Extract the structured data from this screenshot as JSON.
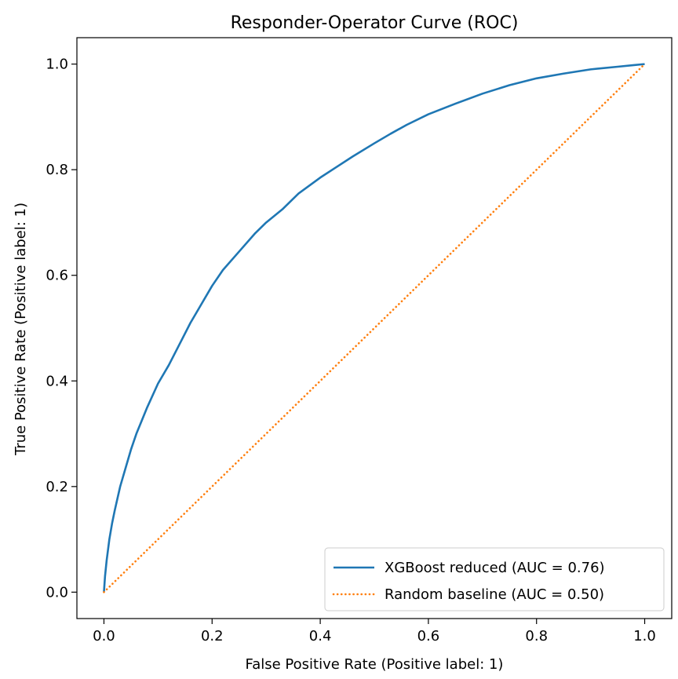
{
  "chart_data": {
    "type": "line",
    "title": "Responder-Operator Curve (ROC)",
    "xlabel": "False Positive Rate (Positive label: 1)",
    "ylabel": "True Positive Rate (Positive label: 1)",
    "xlim": [
      -0.05,
      1.05
    ],
    "ylim": [
      -0.05,
      1.05
    ],
    "xticks": [
      0.0,
      0.2,
      0.4,
      0.6,
      0.8,
      1.0
    ],
    "xtick_labels": [
      "0.0",
      "0.2",
      "0.4",
      "0.6",
      "0.8",
      "1.0"
    ],
    "yticks": [
      0.0,
      0.2,
      0.4,
      0.6,
      0.8,
      1.0
    ],
    "ytick_labels": [
      "0.0",
      "0.2",
      "0.4",
      "0.6",
      "0.8",
      "1.0"
    ],
    "grid": false,
    "legend_position": "lower-right",
    "series": [
      {
        "name": "XGBoost reduced (AUC = 0.76)",
        "color": "#1f77b4",
        "style": "solid",
        "x": [
          0.0,
          0.002,
          0.005,
          0.01,
          0.015,
          0.02,
          0.03,
          0.04,
          0.05,
          0.06,
          0.07,
          0.08,
          0.1,
          0.12,
          0.14,
          0.16,
          0.18,
          0.2,
          0.22,
          0.25,
          0.28,
          0.3,
          0.33,
          0.36,
          0.4,
          0.43,
          0.46,
          0.5,
          0.53,
          0.56,
          0.6,
          0.65,
          0.7,
          0.75,
          0.8,
          0.85,
          0.9,
          0.95,
          0.98,
          1.0
        ],
        "y": [
          0.0,
          0.03,
          0.06,
          0.1,
          0.13,
          0.155,
          0.2,
          0.235,
          0.27,
          0.3,
          0.325,
          0.35,
          0.395,
          0.43,
          0.47,
          0.51,
          0.545,
          0.58,
          0.61,
          0.645,
          0.68,
          0.7,
          0.725,
          0.755,
          0.785,
          0.805,
          0.825,
          0.85,
          0.868,
          0.885,
          0.905,
          0.925,
          0.944,
          0.96,
          0.973,
          0.982,
          0.99,
          0.995,
          0.998,
          1.0
        ]
      },
      {
        "name": "Random baseline (AUC = 0.50)",
        "color": "#ff7f0e",
        "style": "dotted",
        "x": [
          0.0,
          1.0
        ],
        "y": [
          0.0,
          1.0
        ]
      }
    ]
  }
}
